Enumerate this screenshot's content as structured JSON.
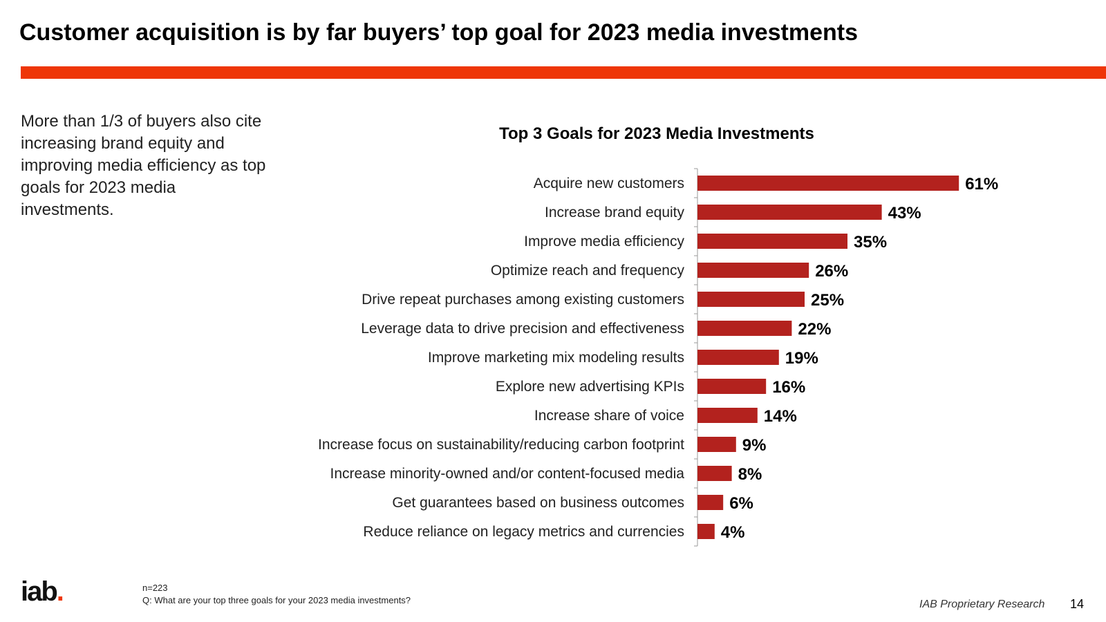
{
  "header": {
    "title": "Customer acquisition is by far buyers’ top goal for 2023 media investments",
    "accent_color": "#ee3608"
  },
  "sidebar": {
    "text": "More than 1/3 of buyers also cite increasing brand equity and improving media efficiency as top goals for 2023 media investments."
  },
  "chart_data": {
    "type": "bar",
    "orientation": "horizontal",
    "title": "Top 3 Goals for 2023 Media Investments",
    "xlabel": "",
    "ylabel": "",
    "categories": [
      "Acquire new customers",
      "Increase brand equity",
      "Improve media efficiency",
      "Optimize reach and frequency",
      "Drive repeat purchases among existing customers",
      "Leverage data to drive precision and effectiveness",
      "Improve marketing mix modeling results",
      "Explore new advertising KPIs",
      "Increase share of voice",
      "Increase focus on sustainability/reducing carbon footprint",
      "Increase minority-owned and/or content-focused media",
      "Get guarantees based on business outcomes",
      "Reduce reliance on legacy metrics and currencies"
    ],
    "values": [
      61,
      43,
      35,
      26,
      25,
      22,
      19,
      16,
      14,
      9,
      8,
      6,
      4
    ],
    "value_labels": [
      "61%",
      "43%",
      "35%",
      "26%",
      "25%",
      "22%",
      "19%",
      "16%",
      "14%",
      "9%",
      "8%",
      "6%",
      "4%"
    ],
    "xlim": [
      0,
      100
    ],
    "grid": false,
    "bar_color": "#b3221e"
  },
  "footer": {
    "logo_text": "iab",
    "logo_dot": ".",
    "sample_size": "n=223",
    "question": "Q: What are your top three goals for your 2023 media investments?",
    "source": "IAB Proprietary Research",
    "page_number": "14"
  }
}
